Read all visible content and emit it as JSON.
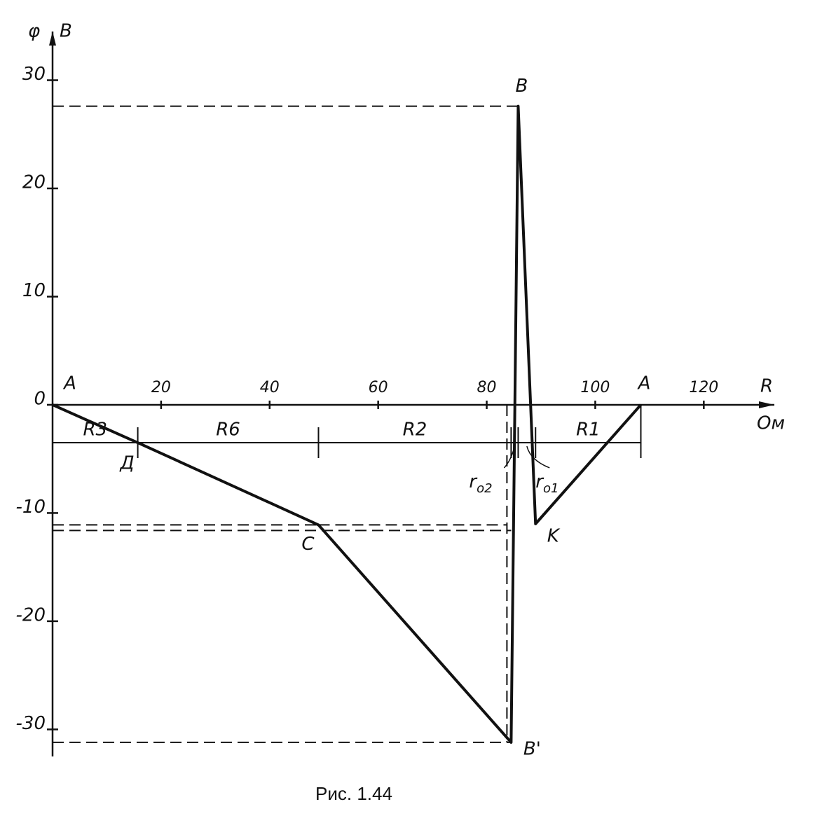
{
  "chart_data": {
    "type": "line",
    "caption": "Рис. 1.44",
    "y_label": "φ",
    "y_unit": "B",
    "x_label": "R",
    "x_unit": "Ом",
    "x": [
      0,
      15.7,
      49,
      84.5,
      85.8,
      89,
      108.4
    ],
    "series": [
      {
        "color": "#111111",
        "values": [
          0,
          -3.5,
          -11.1,
          -31.2,
          27.6,
          -11,
          0
        ]
      }
    ],
    "point_labels": [
      "A",
      "Д",
      "C",
      "B'",
      "B",
      "K",
      "A"
    ],
    "segment_labels": [
      "R3",
      "R6",
      "R2",
      "r",
      "r",
      "R1"
    ],
    "segment_subs": [
      "o2",
      "o1"
    ],
    "xlim": [
      0,
      133
    ],
    "ylim": [
      -32.5,
      34.5
    ],
    "xticks": [
      20,
      40,
      60,
      80,
      100,
      120
    ],
    "yticks": [
      -30,
      -20,
      -10,
      0,
      10,
      20,
      30
    ]
  }
}
